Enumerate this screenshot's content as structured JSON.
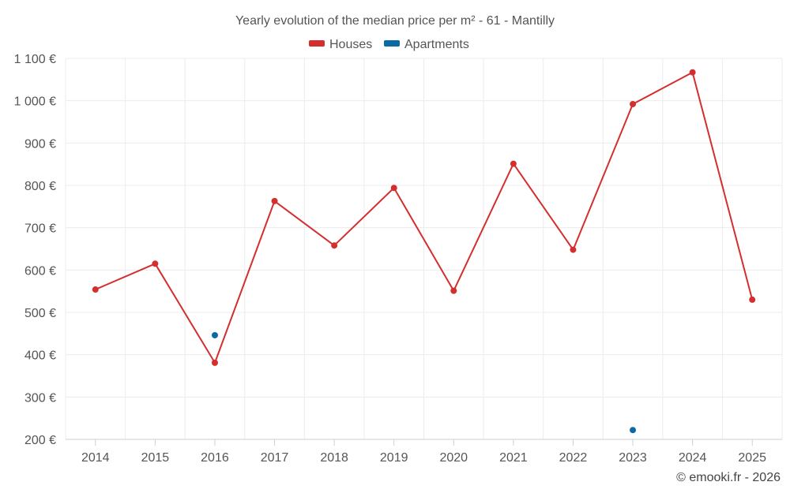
{
  "chart_data": {
    "type": "line",
    "title": "Yearly evolution of the median price per m² - 61 - Mantilly",
    "categories": [
      "2014",
      "2015",
      "2016",
      "2017",
      "2018",
      "2019",
      "2020",
      "2021",
      "2022",
      "2023",
      "2024",
      "2025"
    ],
    "y_ticks": [
      "200 €",
      "300 €",
      "400 €",
      "500 €",
      "600 €",
      "700 €",
      "800 €",
      "900 €",
      "1 000 €",
      "1 100 €"
    ],
    "ylim": [
      200,
      1100
    ],
    "grid": true,
    "legend_position": "top-center",
    "series": [
      {
        "name": "Houses",
        "color": "#d32f2f",
        "values": [
          554,
          615,
          381,
          763,
          658,
          794,
          551,
          851,
          648,
          992,
          1067,
          530
        ]
      },
      {
        "name": "Apartments",
        "color": "#0b6aa2",
        "values": [
          null,
          null,
          446,
          null,
          null,
          null,
          null,
          null,
          null,
          222,
          null,
          null
        ]
      }
    ]
  },
  "credit": "© emooki.fr - 2026"
}
